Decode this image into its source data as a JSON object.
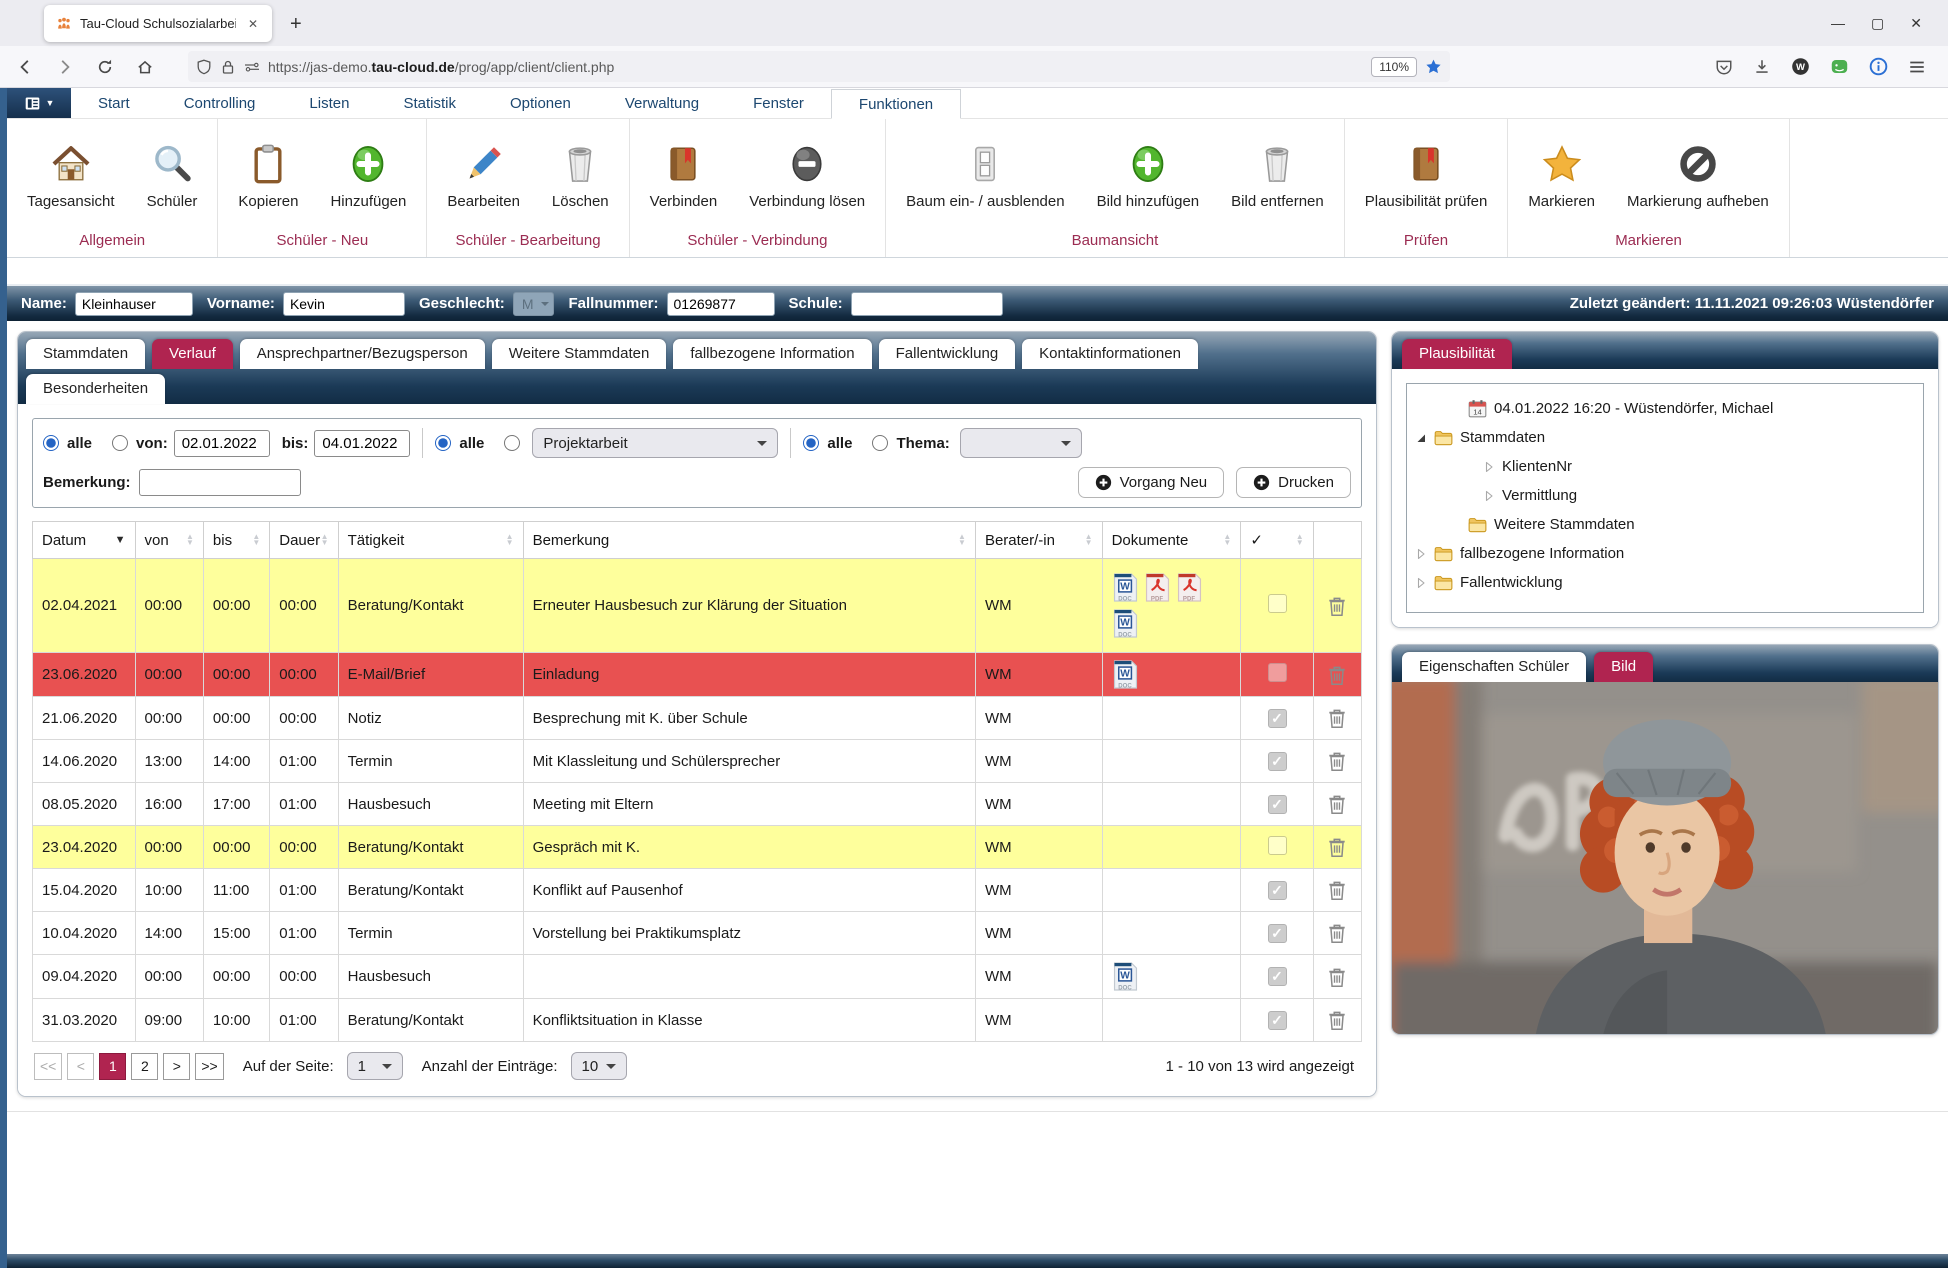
{
  "colors": {
    "accent_crimson": "#b02450",
    "navy": "#16324f",
    "row_yellow": "#feff9c",
    "row_red": "#e85151",
    "group_label": "#9b2c52"
  },
  "browser": {
    "tab_title": "Tau-Cloud Schulsozialarbeit <Ki",
    "tab_close": "✕",
    "new_tab": "+",
    "window_controls": {
      "minimize": "—",
      "maximize": "▢",
      "close": "✕"
    },
    "url": {
      "prefix": "https://jas-demo.",
      "domain": "tau-cloud.de",
      "path": "/prog/app/client/client.php"
    },
    "zoom_badge": "110%"
  },
  "menubar": {
    "items": [
      "Start",
      "Controlling",
      "Listen",
      "Statistik",
      "Optionen",
      "Verwaltung",
      "Fenster",
      "Funktionen"
    ],
    "active_index": 7
  },
  "toolbar": {
    "groups": [
      {
        "label": "Allgemein",
        "buttons": [
          {
            "label": "Tagesansicht",
            "icon": "house-icon"
          },
          {
            "label": "Schüler",
            "icon": "magnifier-icon"
          }
        ]
      },
      {
        "label": "Schüler - Neu",
        "buttons": [
          {
            "label": "Kopieren",
            "icon": "clipboard-icon"
          },
          {
            "label": "Hinzufügen",
            "icon": "plus-icon"
          }
        ]
      },
      {
        "label": "Schüler - Bearbeitung",
        "buttons": [
          {
            "label": "Bearbeiten",
            "icon": "pencil-icon"
          },
          {
            "label": "Löschen",
            "icon": "trash-icon"
          }
        ]
      },
      {
        "label": "Schüler - Verbindung",
        "buttons": [
          {
            "label": "Verbinden",
            "icon": "book-icon"
          },
          {
            "label": "Verbindung lösen",
            "icon": "minus-icon"
          }
        ]
      },
      {
        "label": "Baumansicht",
        "buttons": [
          {
            "label": "Baum ein- / ausblenden",
            "icon": "switch-icon"
          },
          {
            "label": "Bild hinzufügen",
            "icon": "plus-icon"
          },
          {
            "label": "Bild entfernen",
            "icon": "trash-icon"
          }
        ]
      },
      {
        "label": "Prüfen",
        "buttons": [
          {
            "label": "Plausibilität prüfen",
            "icon": "book-icon"
          }
        ]
      },
      {
        "label": "Markieren",
        "buttons": [
          {
            "label": "Markieren",
            "icon": "star-icon"
          },
          {
            "label": "Markierung aufheben",
            "icon": "block-icon"
          }
        ]
      }
    ]
  },
  "client_bar": {
    "name_label": "Name:",
    "name_value": "Kleinhauser",
    "vorname_label": "Vorname:",
    "vorname_value": "Kevin",
    "geschlecht_label": "Geschlecht:",
    "geschlecht_value": "M",
    "fallnummer_label": "Fallnummer:",
    "fallnummer_value": "01269877",
    "schule_label": "Schule:",
    "schule_value": "",
    "last_changed": "Zuletzt geändert: 11.11.2021 09:26:03 Wüstendörfer"
  },
  "tabs": {
    "row1": [
      "Stammdaten",
      "Verlauf",
      "Ansprechpartner/Bezugsperson",
      "Weitere Stammdaten",
      "fallbezogene Information",
      "Fallentwicklung",
      "Kontaktinformationen"
    ],
    "row2": [
      "Besonderheiten"
    ],
    "active": "Verlauf"
  },
  "filters": {
    "date": {
      "alle": "alle",
      "von_label": "von:",
      "von_value": "02.01.2022",
      "bis_label": "bis:",
      "bis_value": "04.01.2022",
      "alle_checked": true
    },
    "taetigkeit": {
      "alle": "alle",
      "select_value": "Projektarbeit",
      "alle_checked": true
    },
    "thema": {
      "alle": "alle",
      "label": "Thema:",
      "select_value": "",
      "alle_checked": true
    },
    "bemerkung_label": "Bemerkung:",
    "bemerkung_value": "",
    "vorgang_neu": "Vorgang Neu",
    "drucken": "Drucken"
  },
  "table": {
    "columns": [
      {
        "label": "Datum",
        "sort": "desc"
      },
      {
        "label": "von",
        "sort": "both"
      },
      {
        "label": "bis",
        "sort": "both"
      },
      {
        "label": "Dauer",
        "sort": "both"
      },
      {
        "label": "Tätigkeit",
        "sort": "both"
      },
      {
        "label": "Bemerkung",
        "sort": "both"
      },
      {
        "label": "Berater/-in",
        "sort": "both"
      },
      {
        "label": "Dokumente",
        "sort": "both"
      },
      {
        "label": "✓",
        "sort": "both"
      },
      {
        "label": "",
        "sort": "none"
      }
    ],
    "rows": [
      {
        "datum": "02.04.2021",
        "von": "00:00",
        "bis": "00:00",
        "dauer": "00:00",
        "taetigkeit": "Beratung/Kontakt",
        "bemerkung": "Erneuter Hausbesuch zur Klärung der Situation",
        "berater": "WM",
        "docs": [
          "doc",
          "pdf",
          "pdf",
          "doc"
        ],
        "checked": false,
        "highlight": "yellow"
      },
      {
        "datum": "23.06.2020",
        "von": "00:00",
        "bis": "00:00",
        "dauer": "00:00",
        "taetigkeit": "E-Mail/Brief",
        "bemerkung": "Einladung",
        "berater": "WM",
        "docs": [
          "doc"
        ],
        "checked": false,
        "highlight": "red"
      },
      {
        "datum": "21.06.2020",
        "von": "00:00",
        "bis": "00:00",
        "dauer": "00:00",
        "taetigkeit": "Notiz",
        "bemerkung": "Besprechung mit K. über Schule",
        "berater": "WM",
        "docs": [],
        "checked": true,
        "highlight": null
      },
      {
        "datum": "14.06.2020",
        "von": "13:00",
        "bis": "14:00",
        "dauer": "01:00",
        "taetigkeit": "Termin",
        "bemerkung": "Mit Klassleitung und Schülersprecher",
        "berater": "WM",
        "docs": [],
        "checked": true,
        "highlight": null
      },
      {
        "datum": "08.05.2020",
        "von": "16:00",
        "bis": "17:00",
        "dauer": "01:00",
        "taetigkeit": "Hausbesuch",
        "bemerkung": "Meeting mit Eltern",
        "berater": "WM",
        "docs": [],
        "checked": true,
        "highlight": null
      },
      {
        "datum": "23.04.2020",
        "von": "00:00",
        "bis": "00:00",
        "dauer": "00:00",
        "taetigkeit": "Beratung/Kontakt",
        "bemerkung": "Gespräch mit K.",
        "berater": "WM",
        "docs": [],
        "checked": false,
        "highlight": "yellow"
      },
      {
        "datum": "15.04.2020",
        "von": "10:00",
        "bis": "11:00",
        "dauer": "01:00",
        "taetigkeit": "Beratung/Kontakt",
        "bemerkung": "Konflikt auf Pausenhof",
        "berater": "WM",
        "docs": [],
        "checked": true,
        "highlight": null
      },
      {
        "datum": "10.04.2020",
        "von": "14:00",
        "bis": "15:00",
        "dauer": "01:00",
        "taetigkeit": "Termin",
        "bemerkung": "Vorstellung bei Praktikumsplatz",
        "berater": "WM",
        "docs": [],
        "checked": true,
        "highlight": null
      },
      {
        "datum": "09.04.2020",
        "von": "00:00",
        "bis": "00:00",
        "dauer": "00:00",
        "taetigkeit": "Hausbesuch",
        "bemerkung": "",
        "berater": "WM",
        "docs": [
          "doc"
        ],
        "checked": true,
        "highlight": null
      },
      {
        "datum": "31.03.2020",
        "von": "09:00",
        "bis": "10:00",
        "dauer": "01:00",
        "taetigkeit": "Beratung/Kontakt",
        "bemerkung": "Konfliktsituation in Klasse",
        "berater": "WM",
        "docs": [],
        "checked": true,
        "highlight": null
      }
    ]
  },
  "pagination": {
    "buttons": [
      {
        "label": "<<",
        "state": "disabled"
      },
      {
        "label": "<",
        "state": "disabled"
      },
      {
        "label": "1",
        "state": "active"
      },
      {
        "label": "2",
        "state": "normal"
      },
      {
        "label": ">",
        "state": "normal"
      },
      {
        "label": ">>",
        "state": "normal"
      }
    ],
    "page_label": "Auf der Seite:",
    "page_value": "1",
    "entries_label": "Anzahl der Einträge:",
    "entries_value": "10",
    "status": "1 - 10 von 13 wird angezeigt"
  },
  "plausibility": {
    "tab": "Plausibilität",
    "tree": [
      {
        "label": "04.01.2022 16:20 - Wüstendörfer, Michael",
        "icon": "calendar-icon",
        "expander": "none",
        "level": 1
      },
      {
        "label": "Stammdaten",
        "icon": "folder-icon",
        "expander": "expanded",
        "level": 0
      },
      {
        "label": "KlientenNr",
        "icon": "none",
        "expander": "collapsed",
        "level": 2
      },
      {
        "label": "Vermittlung",
        "icon": "none",
        "expander": "collapsed",
        "level": 2
      },
      {
        "label": "Weitere Stammdaten",
        "icon": "folder-icon",
        "expander": "none",
        "level": 1
      },
      {
        "label": "fallbezogene Information",
        "icon": "folder-icon",
        "expander": "collapsed",
        "level": 0
      },
      {
        "label": "Fallentwicklung",
        "icon": "folder-icon",
        "expander": "collapsed",
        "level": 0
      }
    ]
  },
  "properties": {
    "tab_eigenschaften": "Eigenschaften Schüler",
    "tab_bild": "Bild"
  }
}
